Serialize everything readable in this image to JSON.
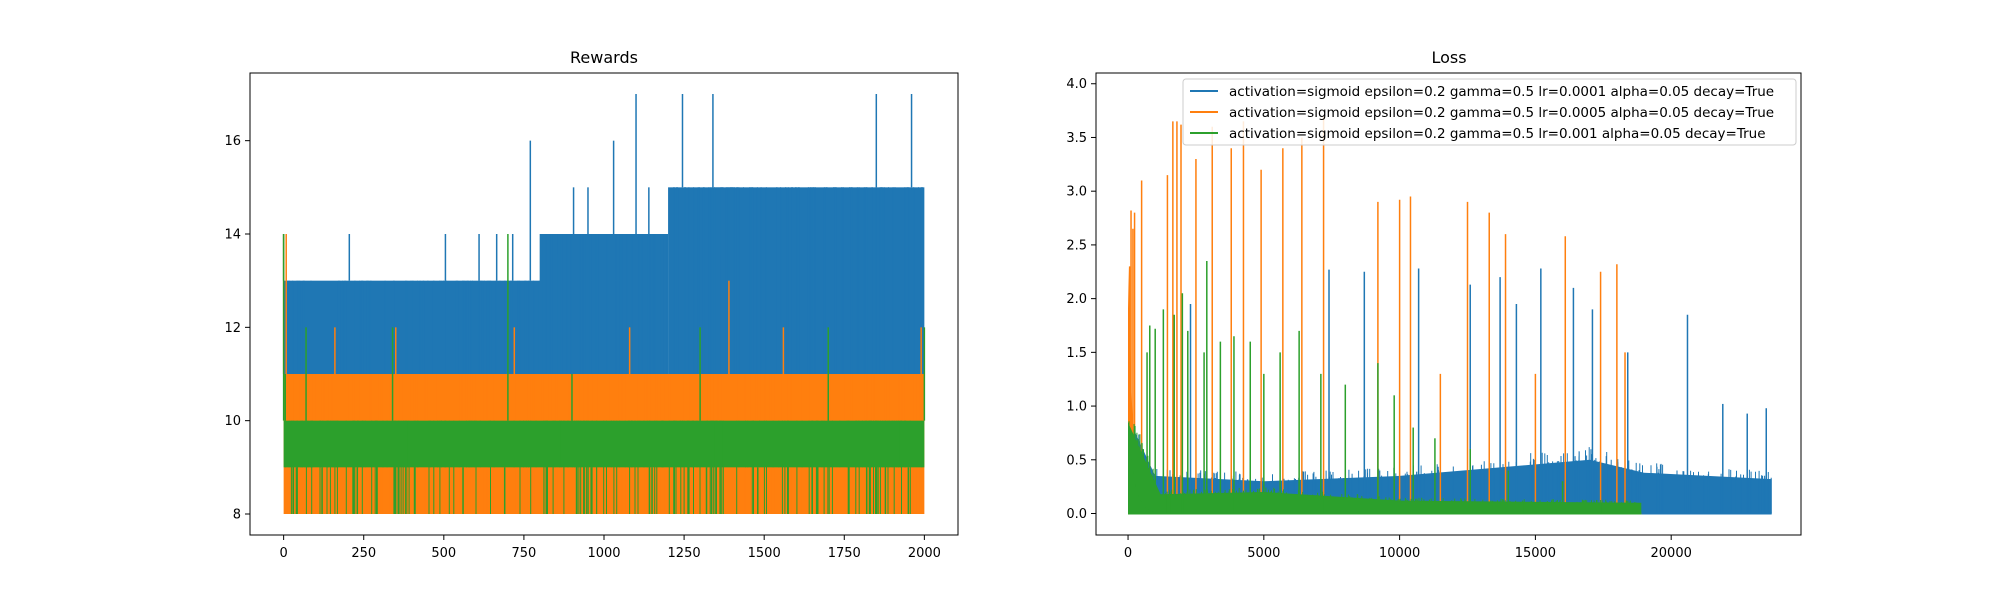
{
  "chart_data": [
    {
      "type": "line",
      "title": "Rewards",
      "xlabel": "",
      "ylabel": "",
      "xlim": [
        -105,
        2105
      ],
      "ylim": [
        7.55,
        17.45
      ],
      "xticks": [
        0,
        250,
        500,
        750,
        1000,
        1250,
        1500,
        1750,
        2000
      ],
      "xtick_labels": [
        "0",
        "250",
        "500",
        "750",
        "1000",
        "1250",
        "1500",
        "1750",
        "2000"
      ],
      "yticks": [
        8,
        10,
        12,
        14,
        16
      ],
      "ytick_labels": [
        "8",
        "10",
        "12",
        "14",
        "16"
      ],
      "grid": false,
      "series": [
        {
          "color": "#1f77b4",
          "x_range": [
            0,
            2000
          ],
          "band_segments": [
            {
              "x": [
                0,
                450
              ],
              "low": 11,
              "high": 13
            },
            {
              "x": [
                450,
                800
              ],
              "low": 11,
              "high": 13
            },
            {
              "x": [
                800,
                1200
              ],
              "low": 11,
              "high": 14
            },
            {
              "x": [
                1200,
                2000
              ],
              "low": 11,
              "high": 15
            }
          ],
          "spikes": [
            {
              "x": 0,
              "y": 14
            },
            {
              "x": 205,
              "y": 14
            },
            {
              "x": 505,
              "y": 14
            },
            {
              "x": 610,
              "y": 14
            },
            {
              "x": 665,
              "y": 14
            },
            {
              "x": 715,
              "y": 14
            },
            {
              "x": 770,
              "y": 16
            },
            {
              "x": 905,
              "y": 15
            },
            {
              "x": 950,
              "y": 15
            },
            {
              "x": 1030,
              "y": 16
            },
            {
              "x": 1100,
              "y": 17
            },
            {
              "x": 1140,
              "y": 15
            },
            {
              "x": 1245,
              "y": 17
            },
            {
              "x": 1340,
              "y": 17
            },
            {
              "x": 1850,
              "y": 17
            },
            {
              "x": 1960,
              "y": 17
            }
          ]
        },
        {
          "color": "#ff7f0e",
          "x_range": [
            0,
            2000
          ],
          "band_segments": [
            {
              "x": [
                0,
                2000
              ],
              "low": 8,
              "high": 11
            }
          ],
          "spikes": [
            {
              "x": 0,
              "y": 14
            },
            {
              "x": 8,
              "y": 14
            },
            {
              "x": 160,
              "y": 12
            },
            {
              "x": 350,
              "y": 12
            },
            {
              "x": 720,
              "y": 12
            },
            {
              "x": 1080,
              "y": 12
            },
            {
              "x": 1390,
              "y": 13
            },
            {
              "x": 1560,
              "y": 12
            },
            {
              "x": 1990,
              "y": 12
            }
          ]
        },
        {
          "color": "#2ca02c",
          "x_range": [
            0,
            2000
          ],
          "band_segments": [
            {
              "x": [
                0,
                2000
              ],
              "low": 9,
              "high": 10
            }
          ],
          "spikes": [
            {
              "x": 0,
              "y": 14
            },
            {
              "x": 5,
              "y": 11
            },
            {
              "x": 70,
              "y": 12
            },
            {
              "x": 340,
              "y": 12
            },
            {
              "x": 700,
              "y": 14
            },
            {
              "x": 900,
              "y": 11
            },
            {
              "x": 1300,
              "y": 12
            },
            {
              "x": 1700,
              "y": 12
            },
            {
              "x": 2000,
              "y": 12
            }
          ],
          "dips": [
            40,
            120,
            230,
            410,
            560,
            690,
            820,
            960,
            1150,
            1320,
            1480,
            1650,
            1820,
            1950
          ]
        }
      ]
    },
    {
      "type": "line",
      "title": "Loss",
      "xlabel": "",
      "ylabel": "",
      "xlim": [
        -1180,
        24780
      ],
      "ylim": [
        -0.2,
        4.1
      ],
      "xticks": [
        0,
        5000,
        10000,
        15000,
        20000
      ],
      "xtick_labels": [
        "0",
        "5000",
        "10000",
        "15000",
        "20000"
      ],
      "yticks": [
        0.0,
        0.5,
        1.0,
        1.5,
        2.0,
        2.5,
        3.0,
        3.5,
        4.0
      ],
      "ytick_labels": [
        "0.0",
        "0.5",
        "1.0",
        "1.5",
        "2.0",
        "2.5",
        "3.0",
        "3.5",
        "4.0"
      ],
      "grid": false,
      "legend": {
        "position": "top-right",
        "entries": [
          "activation=sigmoid epsilon=0.2 gamma=0.5 lr=0.0001 alpha=0.05 decay=True",
          "activation=sigmoid epsilon=0.2 gamma=0.5 lr=0.0005 alpha=0.05 decay=True",
          "activation=sigmoid epsilon=0.2 gamma=0.5 lr=0.001 alpha=0.05 decay=True"
        ]
      },
      "series": [
        {
          "name": "activation=sigmoid epsilon=0.2 gamma=0.5 lr=0.0001 alpha=0.05 decay=True",
          "color": "#1f77b4",
          "x_range": [
            0,
            23700
          ],
          "band": [
            {
              "x": 0,
              "low": 0,
              "high": 0.9
            },
            {
              "x": 1000,
              "low": 0,
              "high": 0.35
            },
            {
              "x": 5000,
              "low": 0,
              "high": 0.3
            },
            {
              "x": 10000,
              "low": 0,
              "high": 0.35
            },
            {
              "x": 17000,
              "low": 0,
              "high": 0.5
            },
            {
              "x": 19000,
              "low": 0,
              "high": 0.38
            },
            {
              "x": 23700,
              "low": 0,
              "high": 0.32
            }
          ],
          "spikes": [
            {
              "x": 2300,
              "y": 1.95
            },
            {
              "x": 7400,
              "y": 2.27
            },
            {
              "x": 8700,
              "y": 2.25
            },
            {
              "x": 10700,
              "y": 2.28
            },
            {
              "x": 12600,
              "y": 2.13
            },
            {
              "x": 13700,
              "y": 2.2
            },
            {
              "x": 14300,
              "y": 1.95
            },
            {
              "x": 15200,
              "y": 2.28
            },
            {
              "x": 16400,
              "y": 2.1
            },
            {
              "x": 17100,
              "y": 1.9
            },
            {
              "x": 18400,
              "y": 1.5
            },
            {
              "x": 20600,
              "y": 1.85
            },
            {
              "x": 21900,
              "y": 1.02
            },
            {
              "x": 22800,
              "y": 0.93
            },
            {
              "x": 23500,
              "y": 0.98
            }
          ]
        },
        {
          "name": "activation=sigmoid epsilon=0.2 gamma=0.5 lr=0.0005 alpha=0.05 decay=True",
          "color": "#ff7f0e",
          "x_range": [
            0,
            18900
          ],
          "decay": {
            "start": 2.3,
            "to_x": 900
          },
          "spikes": [
            {
              "x": 60,
              "y": 2.3
            },
            {
              "x": 110,
              "y": 2.82
            },
            {
              "x": 180,
              "y": 2.65
            },
            {
              "x": 240,
              "y": 2.8
            },
            {
              "x": 500,
              "y": 3.1
            },
            {
              "x": 1450,
              "y": 3.15
            },
            {
              "x": 1650,
              "y": 3.65
            },
            {
              "x": 1800,
              "y": 3.65
            },
            {
              "x": 1950,
              "y": 3.62
            },
            {
              "x": 2500,
              "y": 3.3
            },
            {
              "x": 3100,
              "y": 3.6
            },
            {
              "x": 3800,
              "y": 3.4
            },
            {
              "x": 4250,
              "y": 3.65
            },
            {
              "x": 4900,
              "y": 3.2
            },
            {
              "x": 5700,
              "y": 3.4
            },
            {
              "x": 6400,
              "y": 3.5
            },
            {
              "x": 7200,
              "y": 3.7
            },
            {
              "x": 9200,
              "y": 2.9
            },
            {
              "x": 10000,
              "y": 2.92
            },
            {
              "x": 10400,
              "y": 2.95
            },
            {
              "x": 11500,
              "y": 1.3
            },
            {
              "x": 12500,
              "y": 2.9
            },
            {
              "x": 13300,
              "y": 2.8
            },
            {
              "x": 13900,
              "y": 2.6
            },
            {
              "x": 15000,
              "y": 1.3
            },
            {
              "x": 16100,
              "y": 2.58
            },
            {
              "x": 17400,
              "y": 2.25
            },
            {
              "x": 18000,
              "y": 2.32
            },
            {
              "x": 18300,
              "y": 1.5
            }
          ]
        },
        {
          "name": "activation=sigmoid epsilon=0.2 gamma=0.5 lr=0.001 alpha=0.05 decay=True",
          "color": "#2ca02c",
          "x_range": [
            0,
            18900
          ],
          "decay": {
            "start": 0.85,
            "to_x": 1200
          },
          "band": [
            {
              "x": 0,
              "low": 0.05,
              "high": 0.85
            },
            {
              "x": 1200,
              "low": 0,
              "high": 0.18
            },
            {
              "x": 5000,
              "low": 0,
              "high": 0.2
            },
            {
              "x": 10000,
              "low": 0,
              "high": 0.12
            },
            {
              "x": 18900,
              "low": 0,
              "high": 0.1
            }
          ],
          "spikes": [
            {
              "x": 700,
              "y": 1.5
            },
            {
              "x": 800,
              "y": 1.75
            },
            {
              "x": 1000,
              "y": 1.72
            },
            {
              "x": 1300,
              "y": 1.9
            },
            {
              "x": 1700,
              "y": 1.85
            },
            {
              "x": 2000,
              "y": 2.05
            },
            {
              "x": 2200,
              "y": 1.7
            },
            {
              "x": 2800,
              "y": 1.5
            },
            {
              "x": 2900,
              "y": 2.35
            },
            {
              "x": 3400,
              "y": 1.6
            },
            {
              "x": 3900,
              "y": 1.65
            },
            {
              "x": 4500,
              "y": 1.6
            },
            {
              "x": 5000,
              "y": 1.3
            },
            {
              "x": 5600,
              "y": 1.5
            },
            {
              "x": 6300,
              "y": 1.7
            },
            {
              "x": 7100,
              "y": 1.3
            },
            {
              "x": 8000,
              "y": 1.2
            },
            {
              "x": 9200,
              "y": 1.4
            },
            {
              "x": 9800,
              "y": 1.1
            },
            {
              "x": 10500,
              "y": 0.8
            },
            {
              "x": 11300,
              "y": 0.7
            },
            {
              "x": 12600,
              "y": 0.6
            },
            {
              "x": 14000,
              "y": 0.4
            },
            {
              "x": 16000,
              "y": 0.3
            }
          ]
        }
      ]
    }
  ]
}
